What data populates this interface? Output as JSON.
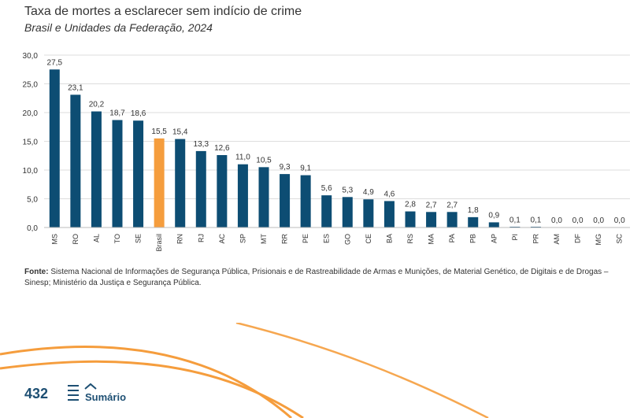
{
  "header": {
    "title": "Taxa de mortes a esclarecer sem indício de crime",
    "subtitle": "Brasil e Unidades da Federação, 2024"
  },
  "chart_data": {
    "type": "bar",
    "categories": [
      "MS",
      "RO",
      "AL",
      "TO",
      "SE",
      "Brasil",
      "RN",
      "RJ",
      "AC",
      "SP",
      "MT",
      "RR",
      "PE",
      "ES",
      "GO",
      "CE",
      "BA",
      "RS",
      "MA",
      "PA",
      "PB",
      "AP",
      "PI",
      "PR",
      "AM",
      "DF",
      "MG",
      "SC"
    ],
    "values": [
      27.5,
      23.1,
      20.2,
      18.7,
      18.6,
      15.5,
      15.4,
      13.3,
      12.6,
      11.0,
      10.5,
      9.3,
      9.1,
      5.6,
      5.3,
      4.9,
      4.6,
      2.8,
      2.7,
      2.7,
      1.8,
      0.9,
      0.1,
      0.1,
      0.0,
      0.0,
      0.0,
      0.0
    ],
    "value_labels": [
      "27,5",
      "23,1",
      "20,2",
      "18,7",
      "18,6",
      "15,5",
      "15,4",
      "13,3",
      "12,6",
      "11,0",
      "10,5",
      "9,3",
      "9,1",
      "5,6",
      "5,3",
      "4,9",
      "4,6",
      "2,8",
      "2,7",
      "2,7",
      "1,8",
      "0,9",
      "0,1",
      "0,1",
      "0,0",
      "0,0",
      "0,0",
      "0,0"
    ],
    "highlight_category": "Brasil",
    "ylim": [
      0,
      30
    ],
    "yticks": [
      0,
      5,
      10,
      15,
      20,
      25,
      30
    ],
    "ytick_labels": [
      "0,0",
      "5,0",
      "10,0",
      "15,0",
      "20,0",
      "25,0",
      "30,0"
    ],
    "grid": true,
    "colors": {
      "bar": "#0d4d73",
      "highlight": "#f59d3d",
      "grid": "#dddddd"
    }
  },
  "source": {
    "label": "Fonte:",
    "text": "Sistema Nacional de Informações de Segurança Pública, Prisionais e de Rastreabilidade de Armas e Munições, de Material Genético, de Digitais e de Drogas – Sinesp; Ministério da Justiça e Segurança Pública."
  },
  "footer": {
    "page_number": "432",
    "summary_label": "Sumário",
    "icon": "menu-up-icon",
    "accent_color": "#f59d3d",
    "brand_color": "#1d4f73"
  }
}
